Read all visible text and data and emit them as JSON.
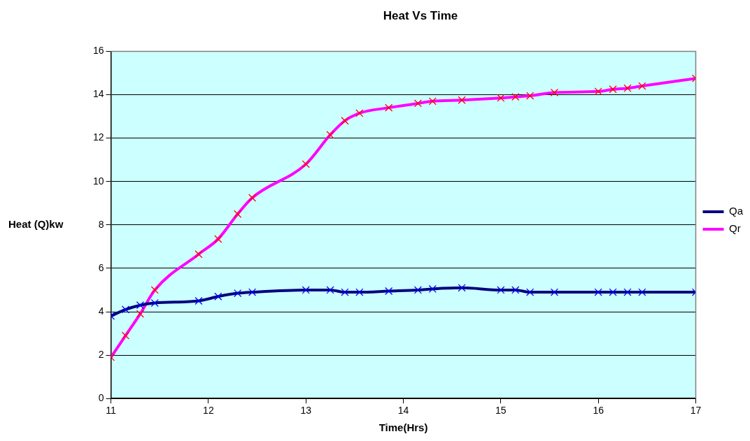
{
  "chart_data": {
    "type": "line",
    "title": "Heat Vs Time",
    "xlabel": "Time(Hrs)",
    "ylabel": "Heat (Q)kw",
    "x": [
      11,
      11.15,
      11.3,
      11.45,
      11.9,
      12.1,
      12.3,
      12.45,
      13,
      13.25,
      13.4,
      13.55,
      13.85,
      14.15,
      14.3,
      14.6,
      15,
      15.15,
      15.3,
      15.55,
      16,
      16.15,
      16.3,
      16.45,
      17
    ],
    "series": [
      {
        "name": "Qa",
        "color": "#000080",
        "marker": "cross",
        "values": [
          3.8,
          4.1,
          4.3,
          4.4,
          4.5,
          4.7,
          4.85,
          4.9,
          5.0,
          5.0,
          4.9,
          4.9,
          4.95,
          5.0,
          5.05,
          5.1,
          5.0,
          5.0,
          4.9,
          4.9,
          4.9,
          4.9,
          4.9,
          4.9,
          4.9
        ]
      },
      {
        "name": "Qr",
        "color": "#ff00ff",
        "marker": "cross",
        "values": [
          1.9,
          2.9,
          3.9,
          5.0,
          6.65,
          7.35,
          8.5,
          9.25,
          10.8,
          12.15,
          12.8,
          13.15,
          13.4,
          13.6,
          13.7,
          13.75,
          13.85,
          13.9,
          13.95,
          14.1,
          14.15,
          14.25,
          14.3,
          14.4,
          14.75
        ]
      }
    ],
    "xlim": [
      11,
      17
    ],
    "xticks": [
      11,
      12,
      13,
      14,
      15,
      16,
      17
    ],
    "ylim": [
      0,
      16
    ],
    "yticks": [
      0,
      2,
      4,
      6,
      8,
      10,
      12,
      14,
      16
    ],
    "grid": "y",
    "legend": "right",
    "line_style": "solid"
  }
}
